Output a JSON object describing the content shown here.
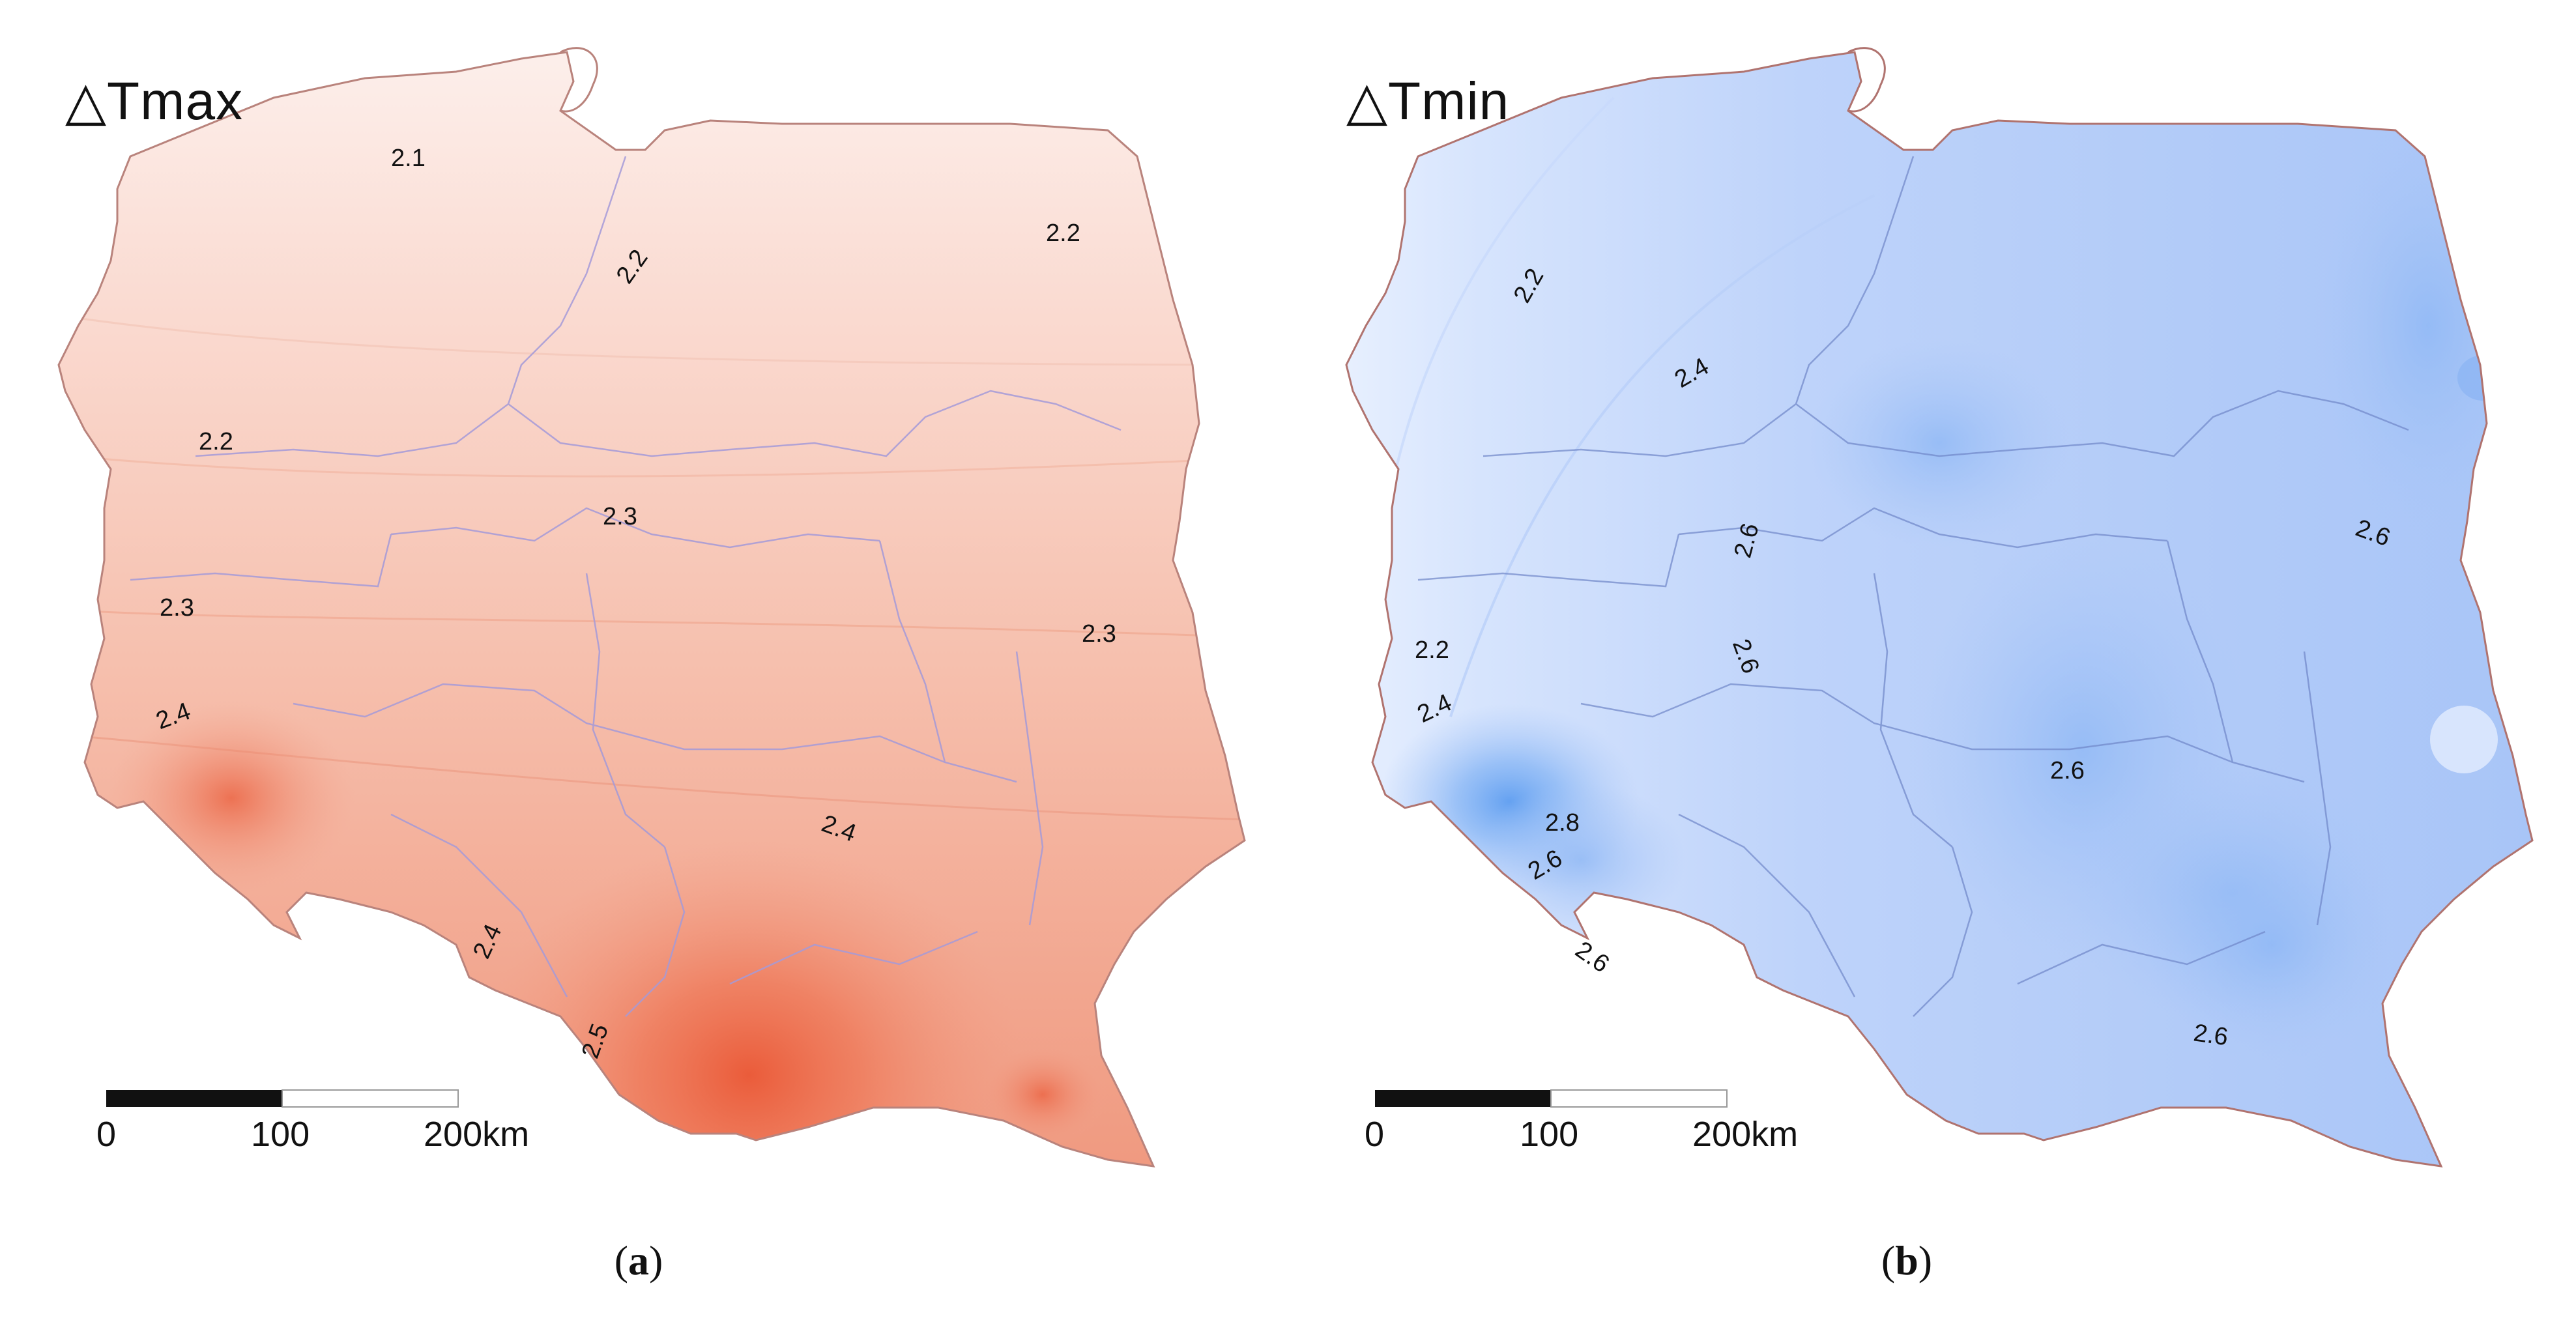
{
  "panels": [
    {
      "id": "a",
      "title": "△Tmax",
      "caption_open": "(",
      "caption_letter": "a",
      "caption_close": ")",
      "palette": {
        "low": "#fdf1ee",
        "mid": "#f6b6a2",
        "high": "#ee6d4a",
        "border": "#b97b74",
        "rivers": "#9a8fd8"
      },
      "contour_labels": [
        "2.1",
        "2.2",
        "2.2",
        "2.2",
        "2.3",
        "2.3",
        "2.3",
        "2.4",
        "2.4",
        "2.4",
        "2.5"
      ]
    },
    {
      "id": "b",
      "title": "△Tmin",
      "caption_open": "(",
      "caption_letter": "b",
      "caption_close": ")",
      "palette": {
        "low": "#e6efff",
        "mid": "#bcd3fb",
        "high": "#7eaef5",
        "border": "#b0736f",
        "rivers": "#6f86c8"
      },
      "contour_labels": [
        "2.2",
        "2.4",
        "2.6",
        "2.6",
        "2.6",
        "2.2",
        "2.4",
        "2.8",
        "2.6",
        "2.6",
        "2.6",
        "2.6"
      ]
    }
  ],
  "scale_bar": {
    "ticks": [
      "0",
      "100",
      "200km"
    ]
  }
}
